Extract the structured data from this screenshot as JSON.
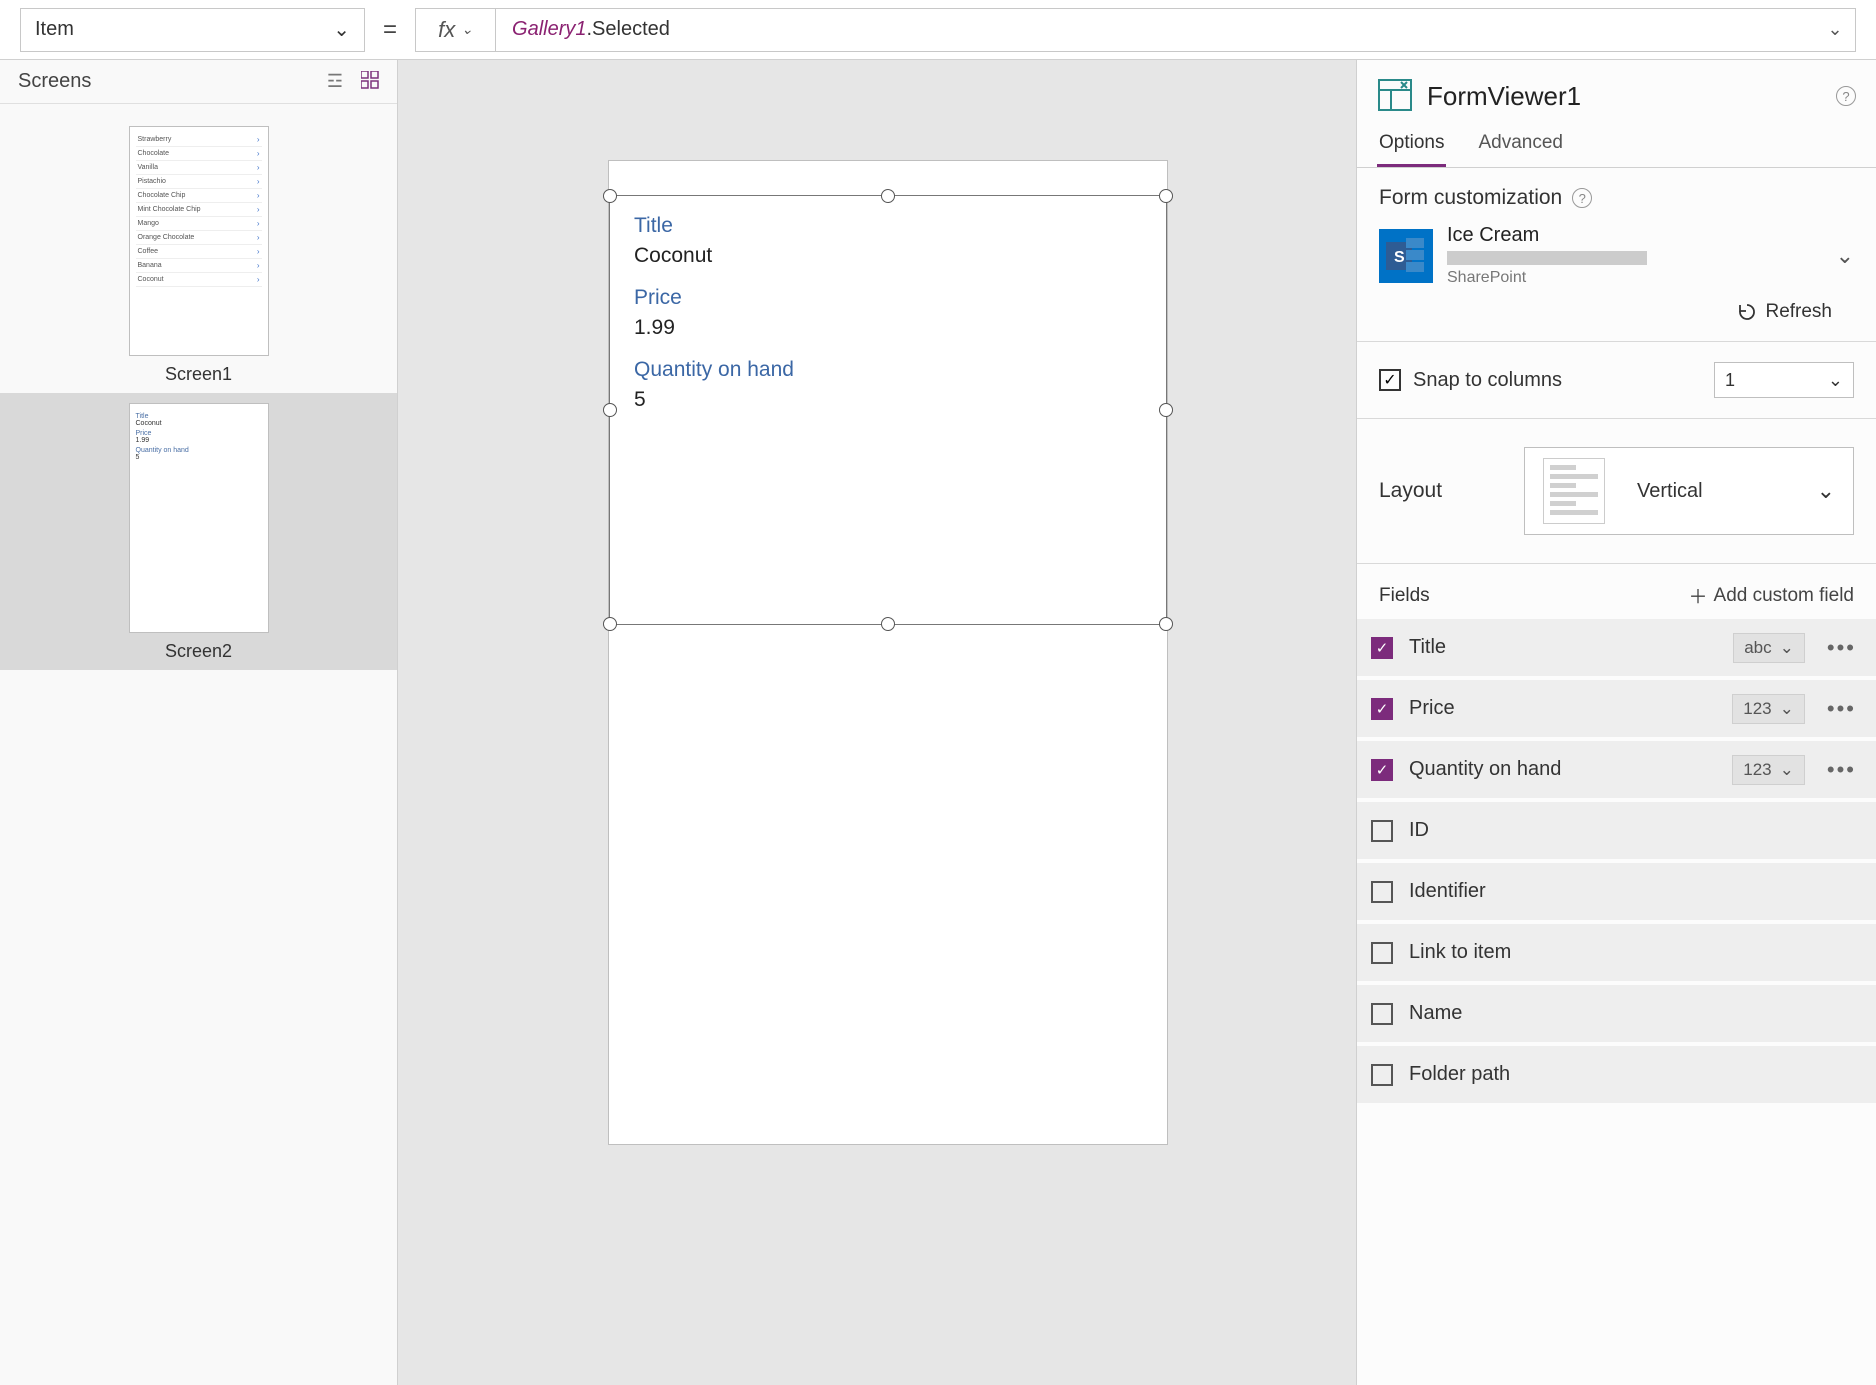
{
  "formula_bar": {
    "property": "Item",
    "equals": "=",
    "fx": "fx",
    "formula_ident": "Gallery1",
    "formula_rest": ".Selected"
  },
  "screens_panel": {
    "title": "Screens",
    "screens": [
      {
        "label": "Screen1",
        "selected": false,
        "type": "gallery"
      },
      {
        "label": "Screen2",
        "selected": true,
        "type": "form"
      }
    ],
    "gallery_rows": [
      "Strawberry",
      "Chocolate",
      "Vanilla",
      "Pistachio",
      "Chocolate Chip",
      "Mint Chocolate Chip",
      "Mango",
      "Orange Chocolate",
      "Coffee",
      "Banana",
      "Coconut"
    ],
    "mini_form": {
      "f1_label": "Title",
      "f1_val": "Coconut",
      "f2_label": "Price",
      "f2_val": "1.99",
      "f3_label": "Quantity on hand",
      "f3_val": "5"
    }
  },
  "canvas": {
    "fields": [
      {
        "label": "Title",
        "value": "Coconut"
      },
      {
        "label": "Price",
        "value": "1.99"
      },
      {
        "label": "Quantity on hand",
        "value": "5"
      }
    ]
  },
  "props": {
    "control_name": "FormViewer1",
    "tabs": {
      "options": "Options",
      "advanced": "Advanced"
    },
    "form_customization": "Form customization",
    "datasource": {
      "name": "Ice Cream",
      "type": "SharePoint"
    },
    "refresh": "Refresh",
    "snap": {
      "label": "Snap to columns",
      "value": "1",
      "checked": true
    },
    "layout": {
      "label": "Layout",
      "value": "Vertical"
    },
    "fields_header": "Fields",
    "add_field": "Add custom field",
    "fields": [
      {
        "name": "Title",
        "checked": true,
        "type": "abc"
      },
      {
        "name": "Price",
        "checked": true,
        "type": "123"
      },
      {
        "name": "Quantity on hand",
        "checked": true,
        "type": "123"
      },
      {
        "name": "ID",
        "checked": false
      },
      {
        "name": "Identifier",
        "checked": false
      },
      {
        "name": "Link to item",
        "checked": false
      },
      {
        "name": "Name",
        "checked": false
      },
      {
        "name": "Folder path",
        "checked": false
      }
    ]
  },
  "colors": {
    "accent": "#7c2b7c",
    "link_blue": "#3b67a5",
    "sp_blue": "#0072c6",
    "panel_border": "#d0d0d0"
  }
}
